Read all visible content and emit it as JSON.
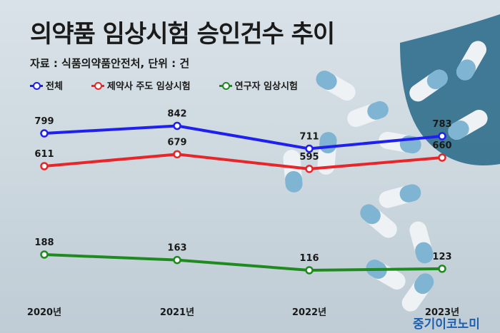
{
  "header": {
    "title": "의약품 임상시험 승인건수 추이",
    "source": "자료 : 식품의약품안전처, 단위 : 건"
  },
  "brand": "중기이코노미",
  "colors": {
    "series1": "#1f1ff0",
    "series2": "#e8262a",
    "series3": "#1f8a1f"
  },
  "chart_data": {
    "type": "line",
    "categories": [
      "2020년",
      "2021년",
      "2022년",
      "2023년"
    ],
    "series": [
      {
        "name": "전체",
        "values": [
          799,
          842,
          711,
          783
        ]
      },
      {
        "name": "제약사 주도 임상시험",
        "values": [
          611,
          679,
          595,
          660
        ]
      },
      {
        "name": "연구자 임상시험",
        "values": [
          188,
          163,
          116,
          123
        ]
      }
    ],
    "legend_position": "top-left",
    "grid": false
  }
}
